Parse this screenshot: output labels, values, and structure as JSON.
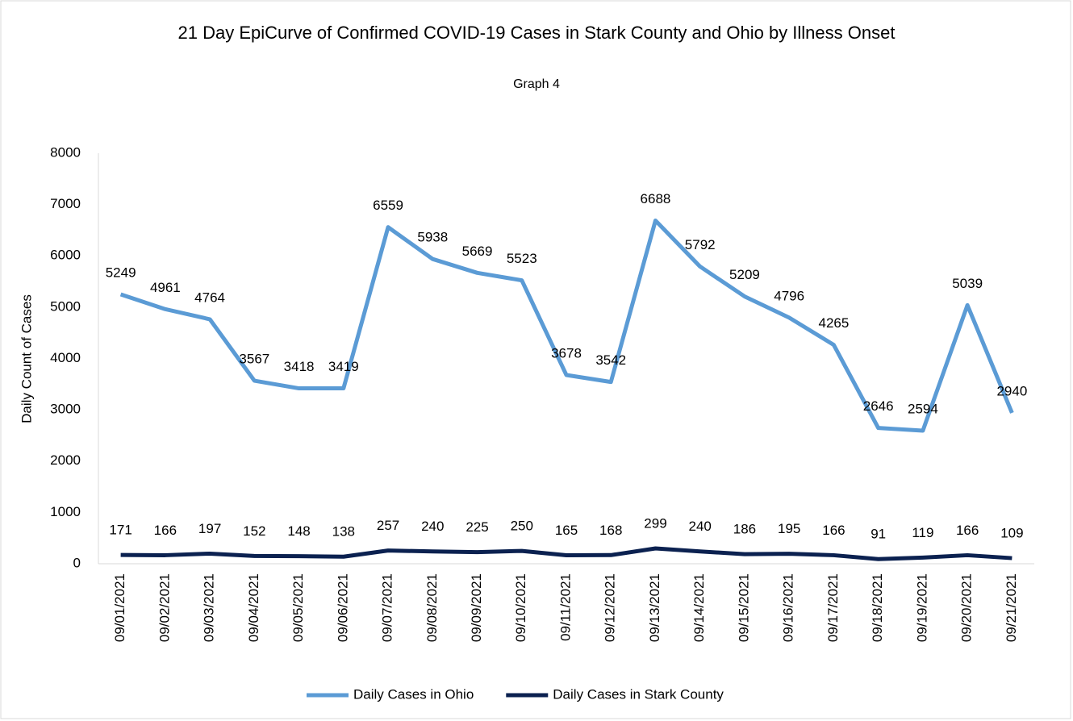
{
  "chart_data": {
    "type": "line",
    "title": "21 Day EpiCurve of Confirmed COVID-19 Cases in Stark County and Ohio by Illness Onset",
    "subtitle": "Graph 4",
    "y_label": "Daily Count of Cases",
    "categories": [
      "09/01/2021",
      "09/02/2021",
      "09/03/2021",
      "09/04/2021",
      "09/05/2021",
      "09/06/2021",
      "09/07/2021",
      "09/08/2021",
      "09/09/2021",
      "09/10/2021",
      "09/11/2021",
      "09/12/2021",
      "09/13/2021",
      "09/14/2021",
      "09/15/2021",
      "09/16/2021",
      "09/17/2021",
      "09/18/2021",
      "09/19/2021",
      "09/20/2021",
      "09/21/2021"
    ],
    "series": [
      {
        "name": "Daily Cases in Ohio",
        "color": "#5b9bd5",
        "values": [
          5249,
          4961,
          4764,
          3567,
          3418,
          3419,
          6559,
          5938,
          5669,
          5523,
          3678,
          3542,
          6688,
          5792,
          5209,
          4796,
          4265,
          2646,
          2594,
          5039,
          2940
        ]
      },
      {
        "name": "Daily Cases in Stark County",
        "color": "#0b2150",
        "values": [
          171,
          166,
          197,
          152,
          148,
          138,
          257,
          240,
          225,
          250,
          165,
          168,
          299,
          240,
          186,
          195,
          166,
          91,
          119,
          166,
          109
        ]
      }
    ],
    "ylim": [
      0,
      8000
    ],
    "yticks": [
      0,
      1000,
      2000,
      3000,
      4000,
      5000,
      6000,
      7000,
      8000
    ],
    "legend": "bottom"
  }
}
